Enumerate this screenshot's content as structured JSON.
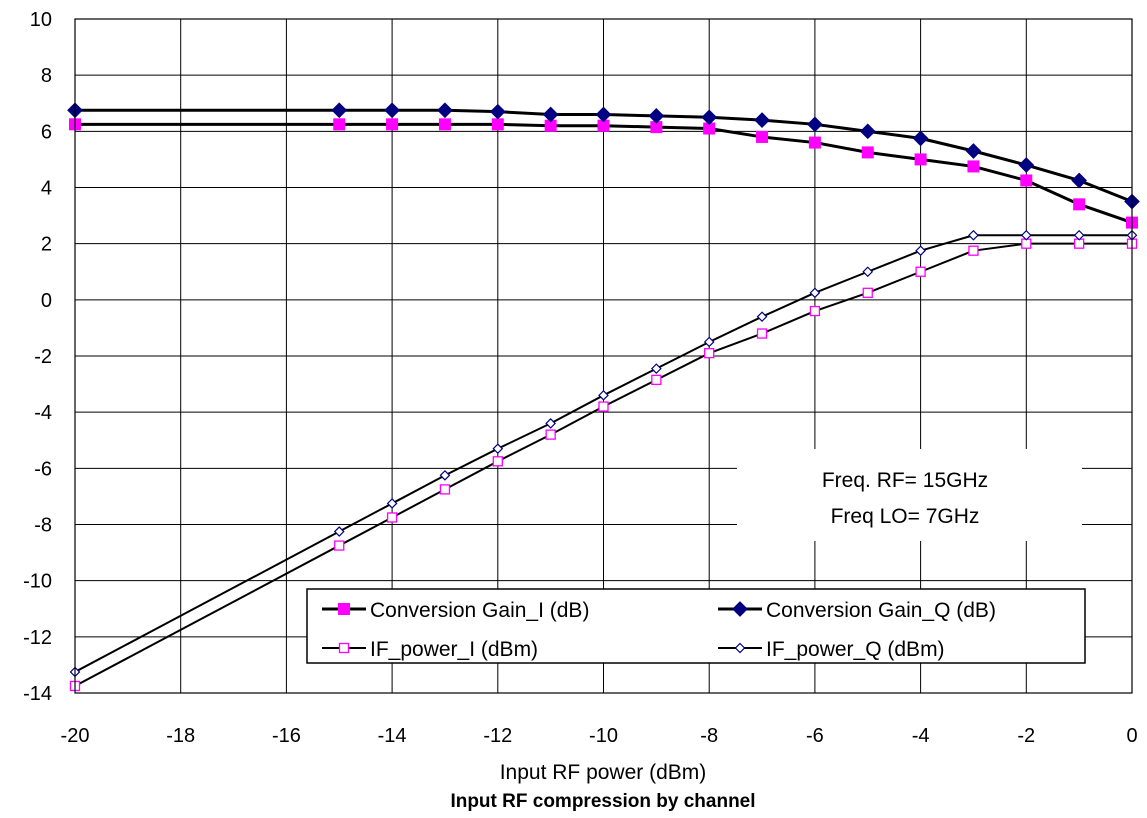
{
  "chart_data": {
    "type": "line",
    "xlabel": "Input RF power (dBm)",
    "caption": "Input RF compression by channel",
    "xlim": [
      -20,
      0
    ],
    "ylim": [
      -14,
      10
    ],
    "x_ticks": [
      "-20",
      "-18",
      "-16",
      "-14",
      "-12",
      "-10",
      "-8",
      "-6",
      "-4",
      "-2",
      "0"
    ],
    "y_ticks": [
      "10",
      "8",
      "6",
      "4",
      "2",
      "0",
      "-2",
      "-4",
      "-6",
      "-8",
      "-10",
      "-12",
      "-14"
    ],
    "grid": true,
    "legend_position": "bottom-right",
    "annotation": [
      "Freq. RF= 15GHz",
      "Freq LO= 7GHz"
    ],
    "series": [
      {
        "name": "Conversion Gain_I (dB)",
        "color": "#ff00ff",
        "marker": "square-filled",
        "points": [
          [
            -20,
            6.25
          ],
          [
            -15,
            6.25
          ],
          [
            -14,
            6.25
          ],
          [
            -13,
            6.25
          ],
          [
            -12,
            6.25
          ],
          [
            -11,
            6.2
          ],
          [
            -10,
            6.2
          ],
          [
            -9,
            6.15
          ],
          [
            -8,
            6.1
          ],
          [
            -7,
            5.8
          ],
          [
            -6,
            5.6
          ],
          [
            -5,
            5.25
          ],
          [
            -4,
            5.0
          ],
          [
            -3,
            4.75
          ],
          [
            -2,
            4.25
          ],
          [
            -1,
            3.4
          ],
          [
            0,
            2.75
          ]
        ]
      },
      {
        "name": "Conversion Gain_Q (dB)",
        "color": "#000080",
        "marker": "diamond-filled",
        "points": [
          [
            -20,
            6.75
          ],
          [
            -15,
            6.75
          ],
          [
            -14,
            6.75
          ],
          [
            -13,
            6.75
          ],
          [
            -12,
            6.7
          ],
          [
            -11,
            6.6
          ],
          [
            -10,
            6.6
          ],
          [
            -9,
            6.55
          ],
          [
            -8,
            6.5
          ],
          [
            -7,
            6.4
          ],
          [
            -6,
            6.25
          ],
          [
            -5,
            6.0
          ],
          [
            -4,
            5.75
          ],
          [
            -3,
            5.3
          ],
          [
            -2,
            4.8
          ],
          [
            -1,
            4.25
          ],
          [
            0,
            3.5
          ]
        ]
      },
      {
        "name": "IF_power_I (dBm)",
        "color": "#ff00ff",
        "marker": "square-open",
        "points": [
          [
            -20,
            -13.75
          ],
          [
            -15,
            -8.75
          ],
          [
            -14,
            -7.75
          ],
          [
            -13,
            -6.75
          ],
          [
            -12,
            -5.75
          ],
          [
            -11,
            -4.8
          ],
          [
            -10,
            -3.8
          ],
          [
            -9,
            -2.85
          ],
          [
            -8,
            -1.9
          ],
          [
            -7,
            -1.2
          ],
          [
            -6,
            -0.4
          ],
          [
            -5,
            0.25
          ],
          [
            -4,
            1.0
          ],
          [
            -3,
            1.75
          ],
          [
            -2,
            2.0
          ],
          [
            -1,
            2.0
          ],
          [
            0,
            2.0
          ]
        ]
      },
      {
        "name": "IF_power_Q (dBm)",
        "color": "#000080",
        "marker": "diamond-open",
        "points": [
          [
            -20,
            -13.25
          ],
          [
            -15,
            -8.25
          ],
          [
            -14,
            -7.25
          ],
          [
            -13,
            -6.25
          ],
          [
            -12,
            -5.3
          ],
          [
            -11,
            -4.4
          ],
          [
            -10,
            -3.4
          ],
          [
            -9,
            -2.45
          ],
          [
            -8,
            -1.5
          ],
          [
            -7,
            -0.6
          ],
          [
            -6,
            0.25
          ],
          [
            -5,
            1.0
          ],
          [
            -4,
            1.75
          ],
          [
            -3,
            2.3
          ],
          [
            -2,
            2.3
          ],
          [
            -1,
            2.3
          ],
          [
            0,
            2.3
          ]
        ]
      }
    ]
  }
}
